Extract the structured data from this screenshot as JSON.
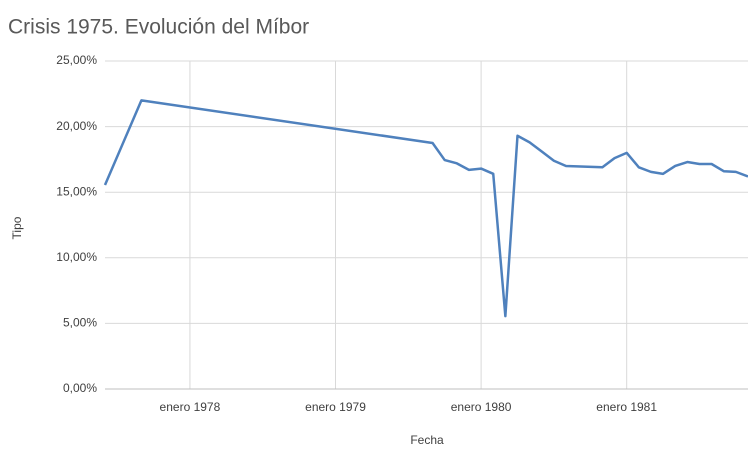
{
  "chart_data": {
    "type": "line",
    "title": "Crisis 1975. Evolución del Míbor",
    "x_label": "Fecha",
    "y_label": "Tipo",
    "x": [
      "1977-06",
      "1977-09",
      "1979-09",
      "1979-10",
      "1979-11",
      "1979-12",
      "1980-01",
      "1980-02",
      "1980-03",
      "1980-04",
      "1980-05",
      "1980-06",
      "1980-07",
      "1980-08",
      "1980-11",
      "1980-12",
      "1981-01",
      "1981-02",
      "1981-03",
      "1981-04",
      "1981-05",
      "1981-06",
      "1981-07",
      "1981-08",
      "1981-09",
      "1981-10",
      "1981-11"
    ],
    "values": [
      15.55,
      22.0,
      18.75,
      17.45,
      17.2,
      16.7,
      16.8,
      16.4,
      5.55,
      19.3,
      18.8,
      18.1,
      17.4,
      17.0,
      16.9,
      17.6,
      18.0,
      16.9,
      16.55,
      16.4,
      17.0,
      17.3,
      17.15,
      17.15,
      16.6,
      16.55,
      16.2
    ],
    "color": "#4f81bd",
    "xlim": [
      "1977-06",
      "1981-11"
    ],
    "xticks": [
      {
        "value": "1978-01",
        "label": "enero 1978"
      },
      {
        "value": "1979-01",
        "label": "enero 1979"
      },
      {
        "value": "1980-01",
        "label": "enero 1980"
      },
      {
        "value": "1981-01",
        "label": "enero 1981"
      }
    ],
    "ylim": [
      0,
      25
    ],
    "yticks": [
      {
        "value": 0,
        "label": "0,00%"
      },
      {
        "value": 5,
        "label": "5,00%"
      },
      {
        "value": 10,
        "label": "10,00%"
      },
      {
        "value": 15,
        "label": "15,00%"
      },
      {
        "value": 20,
        "label": "20,00%"
      },
      {
        "value": 25,
        "label": "25,00%"
      }
    ],
    "grid": true
  }
}
